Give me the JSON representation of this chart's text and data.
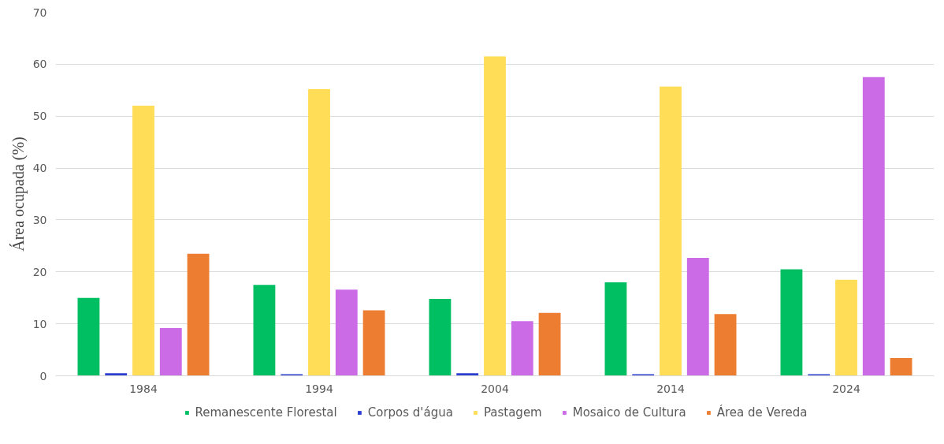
{
  "chart_data": {
    "type": "bar",
    "ylabel": "Área ocupada (%)",
    "categories": [
      "1984",
      "1994",
      "2004",
      "2014",
      "2024"
    ],
    "series": [
      {
        "name": "Remanescente Florestal",
        "color": "#00bf63",
        "values": [
          15.0,
          17.5,
          14.8,
          18.0,
          20.5
        ]
      },
      {
        "name": "Corpos d'água",
        "color": "#2a3fd1",
        "values": [
          0.5,
          0.3,
          0.5,
          0.3,
          0.3
        ]
      },
      {
        "name": "Pastagem",
        "color": "#ffdd57",
        "values": [
          52.0,
          55.2,
          61.5,
          55.7,
          18.5
        ]
      },
      {
        "name": "Mosaico de Cultura",
        "color": "#cb6ce6",
        "values": [
          9.2,
          16.6,
          10.5,
          22.7,
          57.5
        ]
      },
      {
        "name": "Área de Vereda",
        "color": "#ed7d31",
        "values": [
          23.5,
          12.6,
          12.1,
          11.9,
          3.4
        ]
      }
    ],
    "ylim": [
      0,
      70
    ],
    "yticks": [
      0,
      10,
      20,
      30,
      40,
      50,
      60,
      70
    ],
    "grid": "y",
    "legend": "bottom"
  }
}
